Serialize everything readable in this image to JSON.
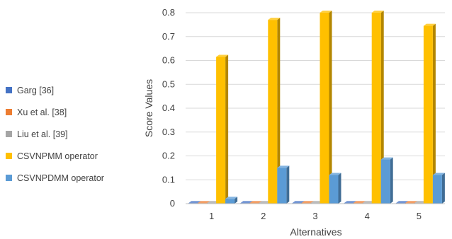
{
  "chart_data": {
    "type": "bar",
    "categories": [
      "1",
      "2",
      "3",
      "4",
      "5"
    ],
    "series": [
      {
        "name": "Garg [36]",
        "color": "#4472c4",
        "values": [
          0,
          0,
          0,
          0,
          0
        ]
      },
      {
        "name": "Xu et al. [38]",
        "color": "#ed7d31",
        "values": [
          0,
          0,
          0,
          0,
          0
        ]
      },
      {
        "name": "Liu et al. [39]",
        "color": "#a5a5a5",
        "values": [
          0,
          0,
          0,
          0,
          0
        ]
      },
      {
        "name": "CSVNPMM operator",
        "color": "#ffc000",
        "values": [
          0.615,
          0.77,
          0.8,
          0.8,
          0.745
        ]
      },
      {
        "name": "CSVNPDMM operator",
        "color": "#5b9bd5",
        "values": [
          0.02,
          0.15,
          0.12,
          0.185,
          0.12
        ]
      }
    ],
    "xlabel": "Alternatives",
    "ylabel": "Score Values",
    "ylim": [
      0,
      0.8
    ],
    "yticks": [
      "0",
      "0.1",
      "0.2",
      "0.3",
      "0.4",
      "0.5",
      "0.6",
      "0.7",
      "0.8"
    ],
    "grid": true,
    "legend_position": "left"
  }
}
